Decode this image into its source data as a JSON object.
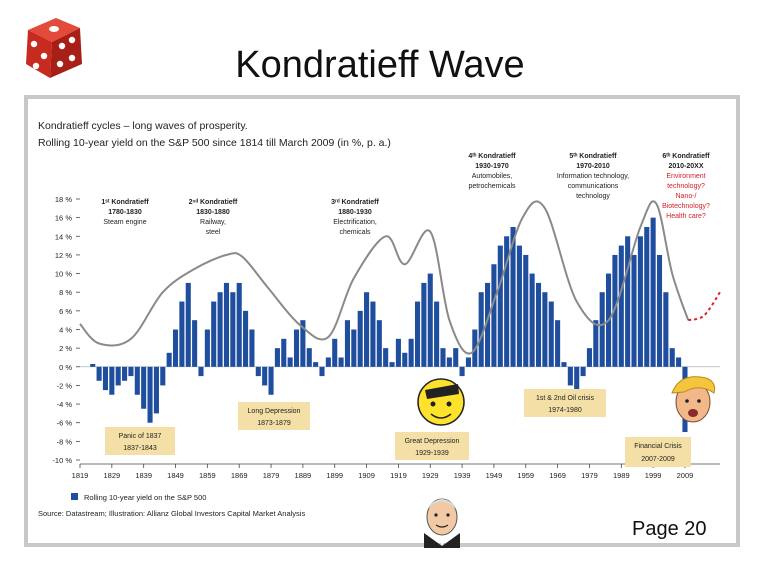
{
  "slide": {
    "title": "Kondratieff Wave",
    "page_label": "Page 20"
  },
  "chart_data": {
    "type": "bar",
    "title": "Kondratieff cycles – long waves of prosperity.",
    "subtitle": "Rolling 10-year yield on the S&P 500 since 1814 till March 2009 (in %, p. a.)",
    "source": "Source: Datastream; Illustration: Allianz Global Investors Capital Market Analysis",
    "legend": "Rolling 10-year yield on the S&P 500",
    "xlim": [
      1819,
      2020
    ],
    "ylim": [
      -10,
      18
    ],
    "y_ticks": [
      18,
      16,
      14,
      12,
      10,
      8,
      6,
      4,
      2,
      0,
      -2,
      -4,
      -6,
      -8,
      -10
    ],
    "y_tick_labels": [
      "18 %",
      "16 %",
      "14 %",
      "12 %",
      "10 %",
      "8 %",
      "6 %",
      "4 %",
      "2 %",
      "0 %",
      "-2 %",
      "-4 %",
      "-6 %",
      "-8 %",
      "-10 %"
    ],
    "x_ticks": [
      "1819",
      "1829",
      "1839",
      "1849",
      "1859",
      "1869",
      "1879",
      "1889",
      "1899",
      "1909",
      "1919",
      "1929",
      "1939",
      "1949",
      "1959",
      "1969",
      "1979",
      "1989",
      "1999",
      "2009"
    ],
    "series": [
      {
        "name": "Rolling 10-year yield on the S&P 500",
        "color": "#1f4e9e",
        "x": [
          1823,
          1825,
          1827,
          1829,
          1831,
          1833,
          1835,
          1837,
          1839,
          1841,
          1843,
          1845,
          1847,
          1849,
          1851,
          1853,
          1855,
          1857,
          1859,
          1861,
          1863,
          1865,
          1867,
          1869,
          1871,
          1873,
          1875,
          1877,
          1879,
          1881,
          1883,
          1885,
          1887,
          1889,
          1891,
          1893,
          1895,
          1897,
          1899,
          1901,
          1903,
          1905,
          1907,
          1909,
          1911,
          1913,
          1915,
          1917,
          1919,
          1921,
          1923,
          1925,
          1927,
          1929,
          1931,
          1933,
          1935,
          1937,
          1939,
          1941,
          1943,
          1945,
          1947,
          1949,
          1951,
          1953,
          1955,
          1957,
          1959,
          1961,
          1963,
          1965,
          1967,
          1969,
          1971,
          1973,
          1975,
          1977,
          1979,
          1981,
          1983,
          1985,
          1987,
          1989,
          1991,
          1993,
          1995,
          1997,
          1999,
          2001,
          2003,
          2005,
          2007,
          2009
        ],
        "values": [
          0.3,
          -1.5,
          -2.5,
          -3,
          -2,
          -1.5,
          -1,
          -3,
          -4.5,
          -6,
          -5,
          -2,
          1.5,
          4,
          7,
          9,
          5,
          -1,
          4,
          7,
          8,
          9,
          8,
          9,
          6,
          4,
          -1,
          -2,
          -3,
          2,
          3,
          1,
          4,
          5,
          2,
          0.5,
          -1,
          1,
          3,
          1,
          5,
          4,
          6,
          8,
          7,
          5,
          2,
          0.5,
          3,
          1.5,
          3,
          7,
          9,
          10,
          7,
          2,
          1,
          2,
          -1,
          1,
          4,
          8,
          9,
          11,
          13,
          14,
          15,
          13,
          12,
          10,
          9,
          8,
          7,
          5,
          0.5,
          -2,
          -3,
          -1,
          2,
          5,
          8,
          10,
          12,
          13,
          14,
          12,
          14,
          15,
          16,
          12,
          8,
          2,
          1,
          -7
        ],
        "note": "values estimated from gridlines"
      }
    ],
    "trend_wave": {
      "name": "Kondratieff long wave",
      "x": [
        1819,
        1825,
        1835,
        1845,
        1855,
        1865,
        1870,
        1878,
        1888,
        1897,
        1905,
        1915,
        1921,
        1929,
        1935,
        1942,
        1950,
        1958,
        1965,
        1975,
        1985,
        1995,
        2000,
        2005,
        2010
      ],
      "values": [
        4.6,
        2.5,
        3,
        8,
        10.5,
        12,
        11.8,
        8.5,
        4.5,
        3.2,
        9.5,
        14,
        11,
        14.5,
        5,
        1.5,
        8,
        16,
        17,
        7,
        5,
        15,
        17.5,
        10,
        5
      ],
      "forecast": {
        "x": [
          2010,
          2015,
          2020
        ],
        "values": [
          5,
          5.5,
          8
        ]
      }
    },
    "annotations": {
      "k1": {
        "title": "1ˢᵗ Kondratieff",
        "years": "1780-1830",
        "desc": "Steam engine"
      },
      "k2": {
        "title": "2ⁿᵈ Kondratieff",
        "years": "1830-1880",
        "desc": "Railway,",
        "desc2": "steel"
      },
      "k3": {
        "title": "3ʳᵈ Kondratieff",
        "years": "1880-1930",
        "desc": "Electrification,",
        "desc2": "chemicals"
      },
      "k4": {
        "title": "4ᵗʰ Kondratieff",
        "years": "1930-1970",
        "desc": "Automobiles,",
        "desc2": "petrochemicals"
      },
      "k5": {
        "title": "5ᵗʰ Kondratieff",
        "years": "1970-2010",
        "desc": "Information technology,",
        "desc2": "communications",
        "desc3": "technology"
      },
      "k6": {
        "title": "6ᵗʰ Kondratieff",
        "years": "2010-20XX",
        "l1": "Environment",
        "l2": "technology?",
        "l3": "Nano-/",
        "l4": "Biotechnology?",
        "l5": "Health care?"
      },
      "panic": {
        "l1": "Panic of 1837",
        "l2": "1837-1843"
      },
      "long_dep": {
        "l1": "Long Depression",
        "l2": "1873-1879"
      },
      "great_dep": {
        "l1": "Great Depression",
        "l2": "1929-1939"
      },
      "oil": {
        "l1": "1st & 2nd Oil crisis",
        "l2": "1974-1980"
      },
      "fin": {
        "l1": "Financial Crisis",
        "l2": "2007-2009"
      }
    }
  }
}
